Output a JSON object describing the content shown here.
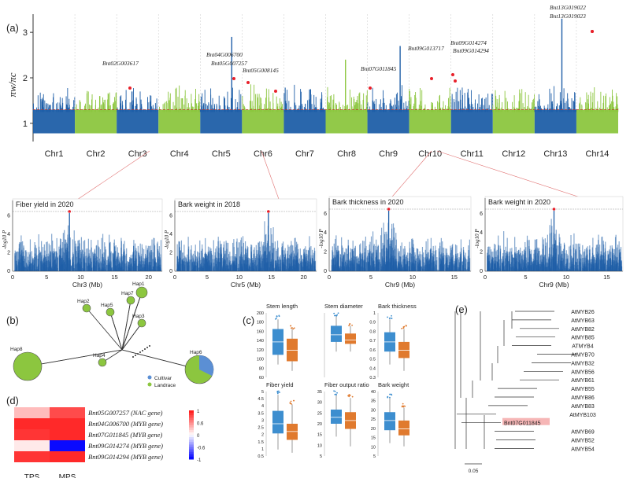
{
  "panel_labels": {
    "a": "(a)",
    "b": "(b)",
    "c": "(c)",
    "d": "(d)",
    "e": "(e)"
  },
  "colors": {
    "blue": "#1f5fa8",
    "green": "#8cc63f",
    "orange": "#e07a2e",
    "red": "#e8202a",
    "box_blue": "#3d8ecf"
  },
  "chart_data": [
    {
      "type": "scatter",
      "id": "main_manhattan",
      "ylabel": "πw/πc",
      "yticks": [
        "1",
        "2",
        "3"
      ],
      "ylim": [
        0.6,
        3.4
      ],
      "threshold": 1.3,
      "chromosomes": [
        "Chr1",
        "Chr2",
        "Chr3",
        "Chr4",
        "Chr5",
        "Chr6",
        "Chr7",
        "Chr8",
        "Chr9",
        "Chr10",
        "Chr11",
        "Chr12",
        "Chr13",
        "Chr14"
      ],
      "annotations": [
        {
          "gene": "Bnt02G003617",
          "chr": 2
        },
        {
          "gene": "Bnt04G006700",
          "chr": 4
        },
        {
          "gene": "Bnt05G007257",
          "chr": 5
        },
        {
          "gene": "Bnt05G008145",
          "chr": 5
        },
        {
          "gene": "Bnt07G011845",
          "chr": 7
        },
        {
          "gene": "Bnt09G013717",
          "chr": 9
        },
        {
          "gene": "Bnt09G014274",
          "chr": 9
        },
        {
          "gene": "Bnt09G014294",
          "chr": 9
        },
        {
          "gene": "Bnt13G019022",
          "chr": 13
        },
        {
          "gene": "Bnt13G019023",
          "chr": 13
        }
      ]
    },
    {
      "type": "scatter",
      "id": "sub1",
      "title": "Fiber yield in 2020",
      "xlabel": "Chr3 (Mb)",
      "xticks": [
        "0",
        "5",
        "10",
        "15",
        "20"
      ],
      "ylabel": "-log10 P",
      "yticks": [
        "0",
        "2",
        "4",
        "6"
      ]
    },
    {
      "type": "scatter",
      "id": "sub2",
      "title": "Bark weight in 2018",
      "xlabel": "Chr5 (Mb)",
      "xticks": [
        "0",
        "5",
        "10",
        "15",
        "20"
      ],
      "ylabel": "-log10 P",
      "yticks": [
        "0",
        "2",
        "4",
        "6"
      ]
    },
    {
      "type": "scatter",
      "id": "sub3",
      "title": "Bark thickness in 2020",
      "xlabel": "Chr9 (Mb)",
      "xticks": [
        "0",
        "5",
        "10",
        "15"
      ],
      "ylabel": "-log10 P",
      "yticks": [
        "0",
        "2",
        "4",
        "6"
      ]
    },
    {
      "type": "scatter",
      "id": "sub4",
      "title": "Bark weight in 2020",
      "xlabel": "Chr9 (Mb)",
      "xticks": [
        "0",
        "5",
        "10",
        "15"
      ],
      "ylabel": "-log10 P",
      "yticks": [
        "0",
        "2",
        "4",
        "6"
      ]
    },
    {
      "type": "diagram",
      "id": "haplotype_network",
      "nodes": [
        "Hap1",
        "Hap2",
        "Hap3",
        "Hap4",
        "Hap5",
        "Hap6",
        "Hap7",
        "Hap8"
      ],
      "legend": [
        "Cultivar",
        "Landrace"
      ]
    },
    {
      "type": "box",
      "id": "traits",
      "panels": [
        {
          "title": "Stem length",
          "yticks": [
            "200",
            "180",
            "160",
            "140",
            "120",
            "100",
            "80",
            "60"
          ]
        },
        {
          "title": "Stem diameter",
          "yticks": []
        },
        {
          "title": "Bark thickness",
          "yticks": [
            "1",
            "0.9",
            "0.8",
            "0.7",
            "0.6",
            "0.5",
            "0.4",
            "0.3"
          ]
        },
        {
          "title": "Fiber yield",
          "yticks": [
            "5",
            "4.5",
            "4",
            "3.5",
            "3",
            "2.5",
            "2",
            "1.5",
            "1",
            "0.5"
          ]
        },
        {
          "title": "Fiber output ratio",
          "yticks": [
            "35",
            "30",
            "25",
            "20",
            "15",
            "10",
            "5"
          ]
        },
        {
          "title": "Bark weight",
          "yticks": [
            "40",
            "35",
            "30",
            "25",
            "20",
            "15",
            "10",
            "5"
          ]
        }
      ]
    },
    {
      "type": "heatmap",
      "id": "expression",
      "columns": [
        "TPS",
        "MPS"
      ],
      "rows": [
        "Bnt05G007257 (NAC gene)",
        "Bnt04G006700 (MYB gene)",
        "Bnt07G011845 (MYB gene)",
        "Bnt09G014274 (MYB gene)",
        "Bnt09G014294 (MYB gene)"
      ],
      "values": [
        [
          0.3,
          0.8
        ],
        [
          0.95,
          0.95
        ],
        [
          0.9,
          0.95
        ],
        [
          0.1,
          -1.0
        ],
        [
          0.9,
          0.95
        ]
      ],
      "scale_ticks": [
        "1",
        "0.6",
        "0",
        "-0.6",
        "-1"
      ],
      "zlim": [
        -1,
        1
      ]
    },
    {
      "type": "tree",
      "id": "phylogeny",
      "leaves": [
        "AtMYB26",
        "AtMYB63",
        "AtMYB82",
        "AtMYB85",
        "ATMYB4",
        "AtMYB70",
        "AtMYB32",
        "AtMYB56",
        "AtMYB61",
        "AtMYB55",
        "AtMYB86",
        "AtMYB83",
        "AtMYB103",
        "Bnt07G011845",
        "AtMYB69",
        "AtMYB52",
        "AtMYB54"
      ],
      "highlight": "Bnt07G011845",
      "scale_label": "0.05"
    }
  ]
}
